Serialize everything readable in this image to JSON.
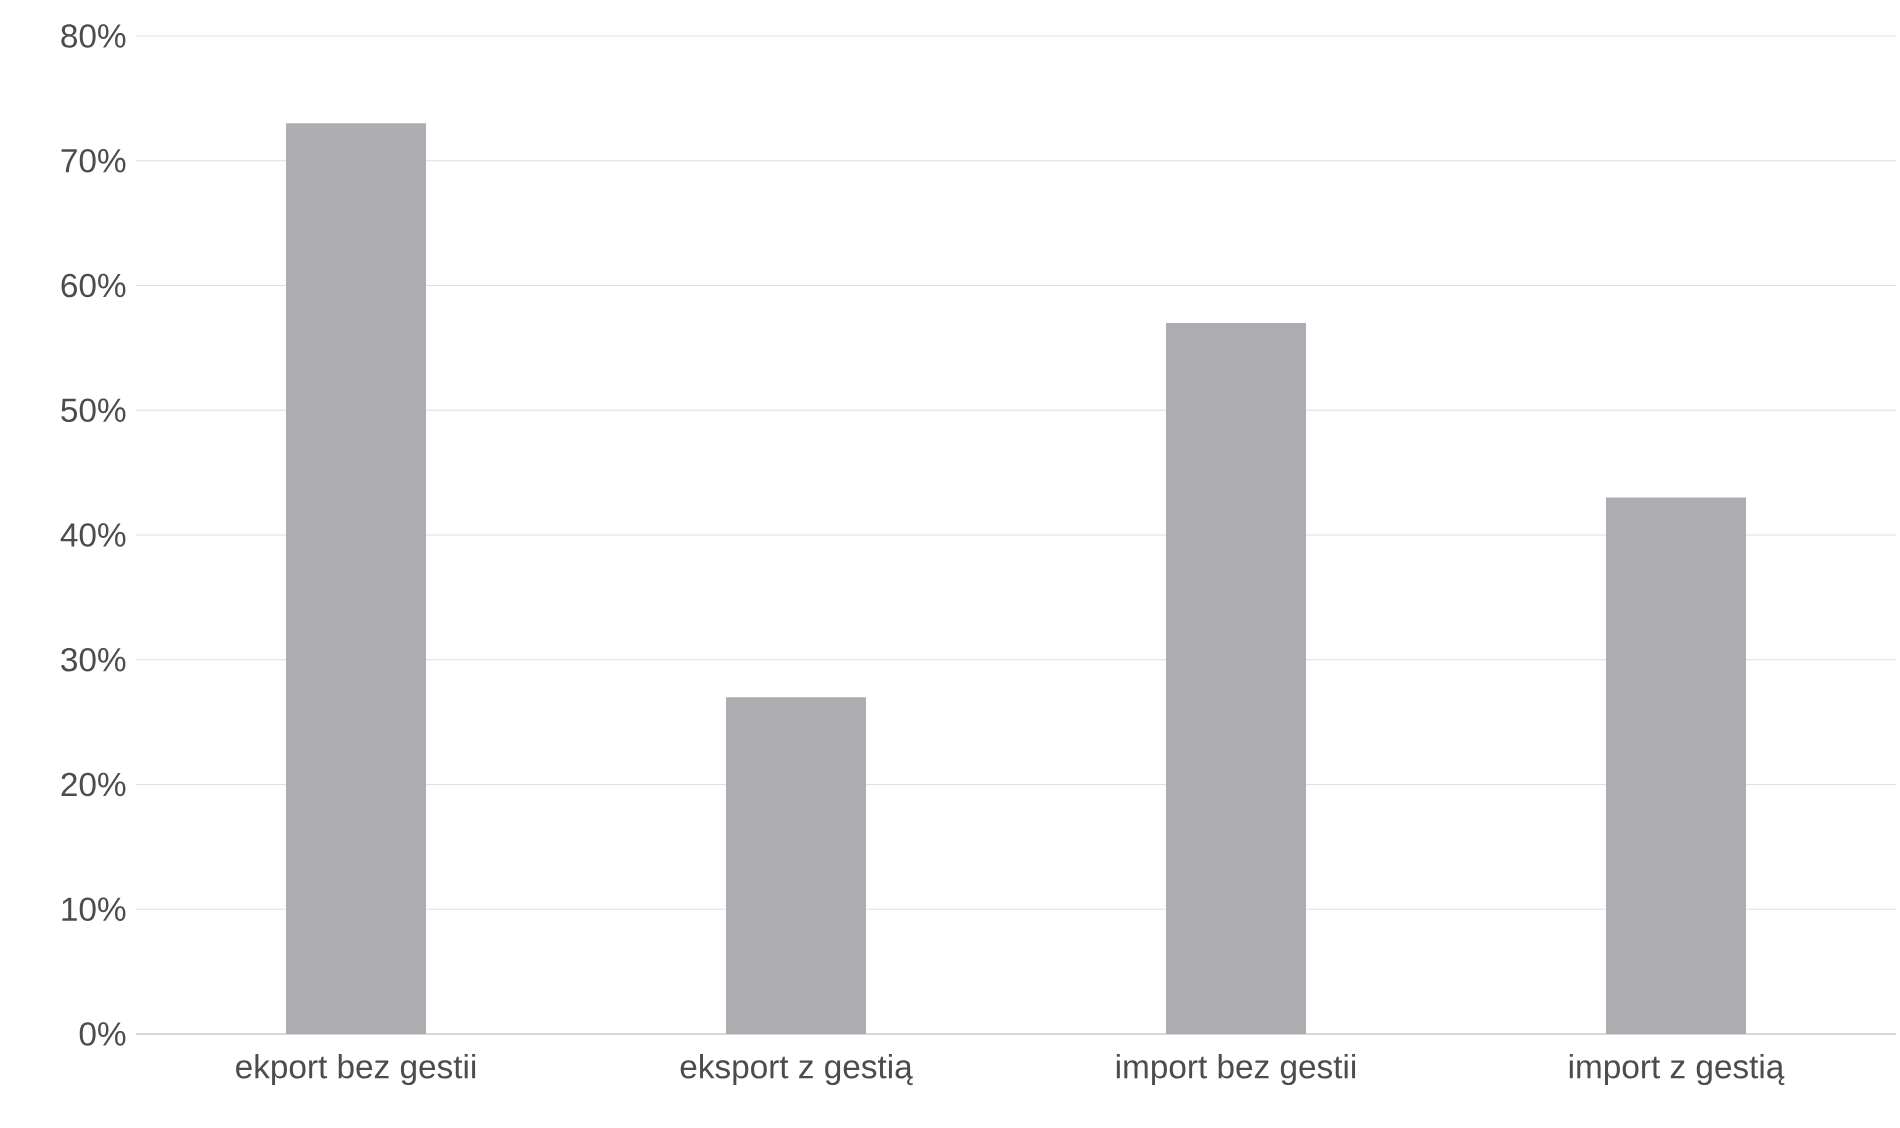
{
  "chart_data": {
    "type": "bar",
    "categories": [
      "ekport bez gestii",
      "eksport z gestią",
      "import bez gestii",
      "import  z gestią"
    ],
    "values": [
      73,
      27,
      57,
      43
    ],
    "color": "#adadb1",
    "ylim": [
      0,
      80
    ],
    "yticks": [
      {
        "value": 0,
        "label": "0%"
      },
      {
        "value": 10,
        "label": "10%"
      },
      {
        "value": 20,
        "label": "20%"
      },
      {
        "value": 30,
        "label": "30%"
      },
      {
        "value": 40,
        "label": "40%"
      },
      {
        "value": 50,
        "label": "50%"
      },
      {
        "value": 60,
        "label": "60%"
      },
      {
        "value": 70,
        "label": "70%"
      },
      {
        "value": 80,
        "label": "80%"
      }
    ],
    "grid": "y"
  }
}
